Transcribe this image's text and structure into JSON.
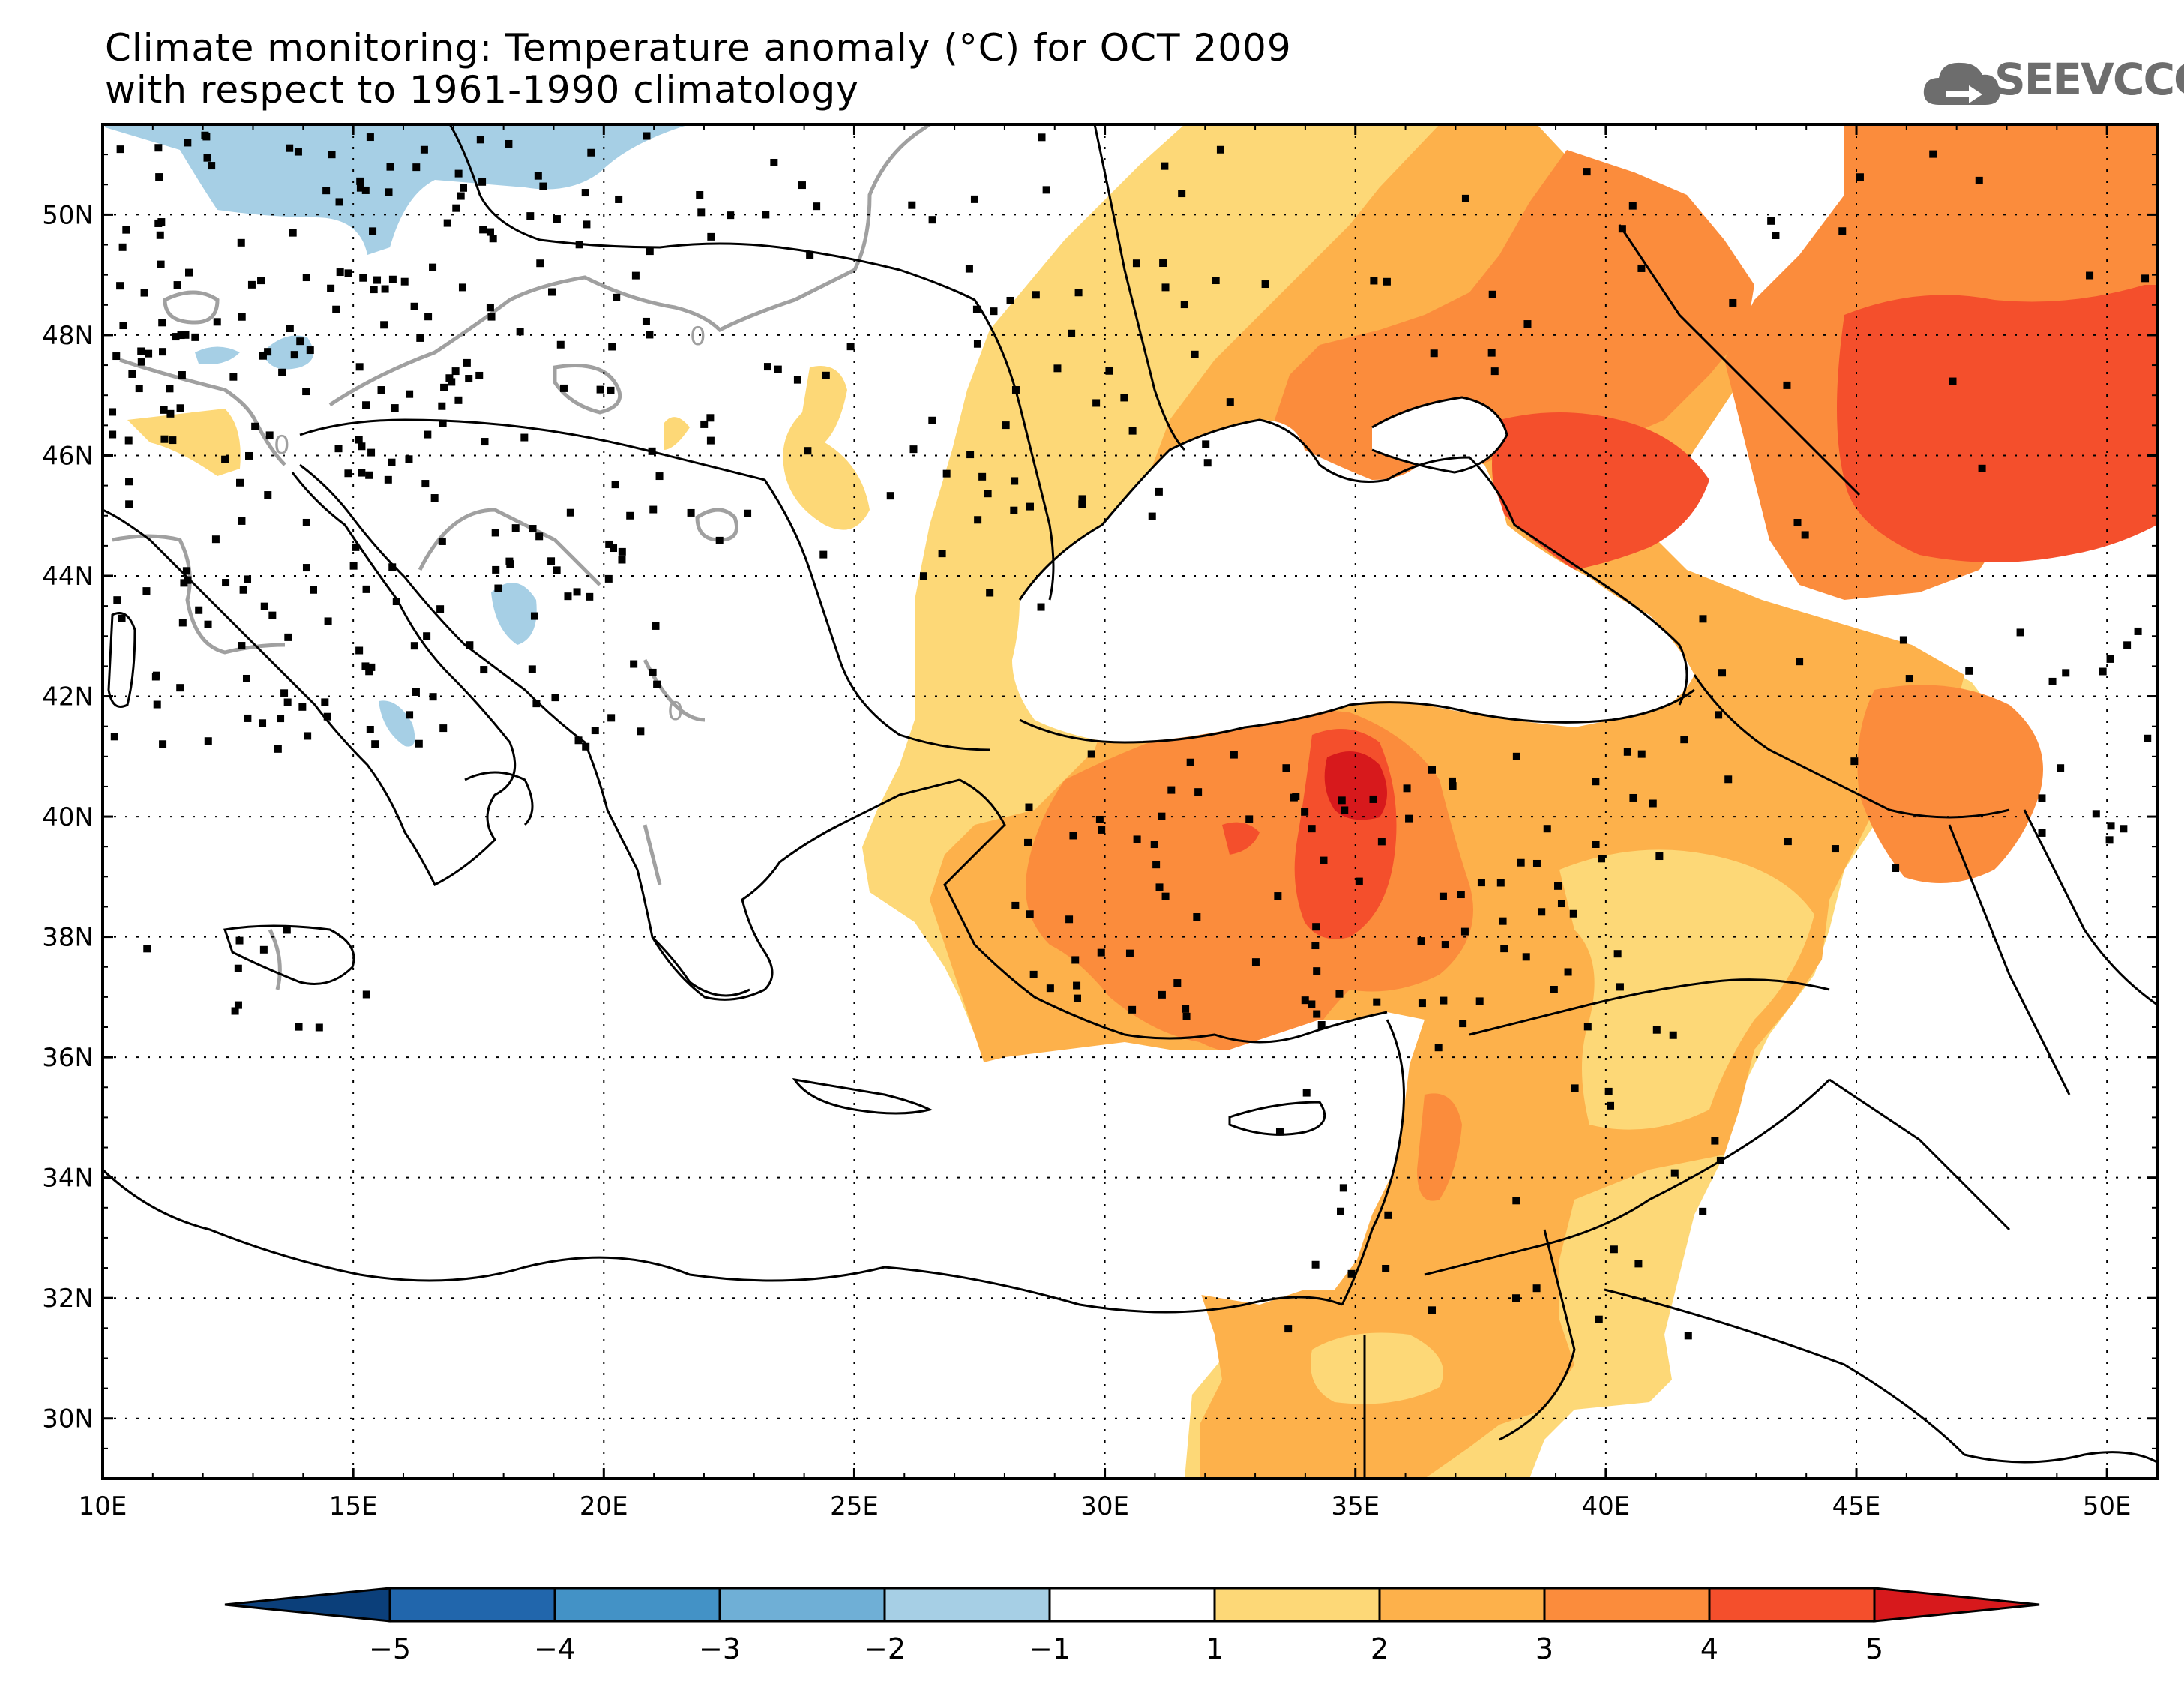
{
  "title_line1": "Climate monitoring: Temperature anomaly (°C) for OCT 2009",
  "title_line2": "with respect to 1961-1990 climatology",
  "logo_text": "SEEVCCC",
  "logo_icon": "cloud-icon",
  "map": {
    "lon_range": [
      10,
      51
    ],
    "lat_range": [
      29,
      51.5
    ],
    "lon_ticks": [
      "10E",
      "15E",
      "20E",
      "25E",
      "30E",
      "35E",
      "40E",
      "45E",
      "50E"
    ],
    "lat_ticks": [
      "30N",
      "32N",
      "34N",
      "36N",
      "38N",
      "40N",
      "42N",
      "44N",
      "46N",
      "48N",
      "50N"
    ],
    "contour_label": "0",
    "grid": "dotted"
  },
  "colorbar": {
    "labels": [
      "-5",
      "-4",
      "-3",
      "-2",
      "-1",
      "1",
      "2",
      "3",
      "4",
      "5"
    ],
    "colors": [
      "#0b3f7a",
      "#2166ac",
      "#4392c6",
      "#6fafd6",
      "#a6cfe5",
      "#ffffff",
      "#fdd877",
      "#fdb14b",
      "#fb8c3c",
      "#f44f2c",
      "#d7191c"
    ]
  },
  "anomaly_colors": {
    "cold2": "#a6cfe5",
    "warm1": "#fdd877",
    "warm2": "#fdb14b",
    "warm3": "#fb8c3c",
    "warm4": "#f44f2c",
    "warm5": "#d7191c"
  }
}
